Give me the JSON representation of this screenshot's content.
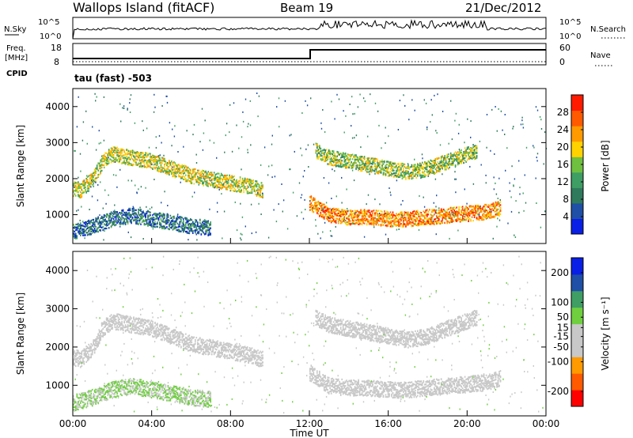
{
  "header": {
    "site": "Wallops Island (fitACF)",
    "beam": "Beam 19",
    "date": "21/Dec/2012"
  },
  "noise_panel": {
    "left_label": "N.Sky",
    "left_ticks": [
      "10^5",
      "10^0"
    ],
    "right_label": "N.Search",
    "right_ticks": [
      "10^5",
      "10^0"
    ]
  },
  "freq_panel": {
    "left_label_1": "Freq.",
    "left_label_2": "[MHz]",
    "left_ticks": [
      "18",
      "8"
    ],
    "right_label": "Nave",
    "right_ticks": [
      "60",
      "0"
    ],
    "cpid_label": "CPID",
    "cpid_text": "tau (fast) -503"
  },
  "colors": {
    "power_scale": [
      "#0a1fe6",
      "#1f4fa6",
      "#2f7a5c",
      "#3f9e64",
      "#6fc040",
      "#ffd200",
      "#ff9a00",
      "#ff5a00",
      "#ff1a00"
    ],
    "velocity_scale": [
      "#ff0000",
      "#ff5a00",
      "#ff9a00",
      "#c8c8c8",
      "#c8c8c8",
      "#6fcf3f",
      "#3f9e64",
      "#1f4fa6",
      "#0a1fe6"
    ]
  },
  "chart_data": [
    {
      "type": "heatmap",
      "panel": "power",
      "ylabel": "Slant Range [km]",
      "yticks": [
        "1000",
        "2000",
        "3000",
        "4000"
      ],
      "ylim": [
        200,
        4500
      ],
      "x": [
        "00:00",
        "04:00",
        "08:00",
        "12:00",
        "16:00",
        "20:00",
        "00:00"
      ],
      "colorbar": {
        "label": "Power [dB]",
        "ticks": [
          "4",
          "8",
          "12",
          "16",
          "20",
          "24",
          "28"
        ],
        "range": [
          0,
          32
        ]
      },
      "bands": [
        {
          "x": [
            0,
            0.4,
            1.0,
            1.5,
            2.0,
            3.0,
            4.0,
            5.0,
            6.0,
            7.0,
            8.0,
            9.0,
            9.6
          ],
          "y": [
            1750,
            1700,
            2000,
            2500,
            2700,
            2600,
            2500,
            2300,
            2100,
            2000,
            1900,
            1800,
            1700
          ],
          "power": 18
        },
        {
          "x": [
            0,
            1.0,
            2.0,
            3.0,
            4.0,
            5.0,
            6.0,
            7.0
          ],
          "y": [
            550,
            700,
            900,
            1000,
            900,
            800,
            700,
            650
          ],
          "power": 8
        },
        {
          "x": [
            12.0,
            13.0,
            14.0,
            15.0,
            16.0,
            17.0,
            18.0,
            19.0,
            20.0,
            21.0,
            21.7
          ],
          "y": [
            1350,
            1000,
            950,
            950,
            900,
            900,
            950,
            1000,
            1050,
            1100,
            1200
          ],
          "power": 24
        },
        {
          "x": [
            12.3,
            13.0,
            14.0,
            15.0,
            16.0,
            17.0,
            18.0,
            19.0,
            20.0,
            20.5
          ],
          "y": [
            2800,
            2600,
            2500,
            2400,
            2300,
            2200,
            2300,
            2500,
            2700,
            2800
          ],
          "power": 16
        }
      ]
    },
    {
      "type": "heatmap",
      "panel": "velocity",
      "ylabel": "Slant Range [km]",
      "xlabel": "Time UT",
      "yticks": [
        "1000",
        "2000",
        "3000",
        "4000"
      ],
      "ylim": [
        200,
        4500
      ],
      "x": [
        "00:00",
        "04:00",
        "08:00",
        "12:00",
        "16:00",
        "20:00",
        "00:00"
      ],
      "colorbar": {
        "label": "Velocity [m s⁻¹]",
        "ticks": [
          "200",
          "100",
          "50",
          "15",
          "-15",
          "-50",
          "-100",
          "-200"
        ],
        "range": [
          -250,
          250
        ]
      },
      "bands": [
        {
          "x": [
            0,
            0.4,
            1.0,
            1.5,
            2.0,
            3.0,
            4.0,
            5.0,
            6.0,
            7.0,
            8.0,
            9.0,
            9.6
          ],
          "y": [
            1750,
            1700,
            2000,
            2500,
            2700,
            2600,
            2500,
            2300,
            2100,
            2000,
            1900,
            1800,
            1700
          ],
          "velocity": 0
        },
        {
          "x": [
            0,
            1.0,
            2.0,
            3.0,
            4.0,
            5.0,
            6.0,
            7.0
          ],
          "y": [
            550,
            700,
            900,
            1000,
            900,
            800,
            700,
            650
          ],
          "velocity": 30
        },
        {
          "x": [
            12.0,
            13.0,
            14.0,
            15.0,
            16.0,
            17.0,
            18.0,
            19.0,
            20.0,
            21.0,
            21.7
          ],
          "y": [
            1350,
            1000,
            950,
            950,
            900,
            900,
            950,
            1000,
            1050,
            1100,
            1200
          ],
          "velocity": 0
        },
        {
          "x": [
            12.3,
            13.0,
            14.0,
            15.0,
            16.0,
            17.0,
            18.0,
            19.0,
            20.0,
            20.5
          ],
          "y": [
            2800,
            2600,
            2500,
            2400,
            2300,
            2200,
            2300,
            2500,
            2700,
            2800
          ],
          "velocity": 0
        }
      ]
    }
  ]
}
